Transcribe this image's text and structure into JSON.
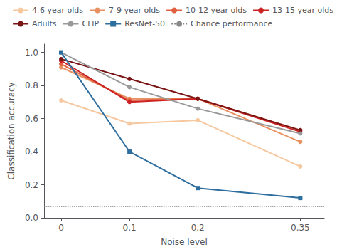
{
  "chart_data": {
    "type": "line",
    "xlabel": "Noise level",
    "ylabel": "Classification accuracy",
    "x": [
      0,
      0.1,
      0.2,
      0.35
    ],
    "series": [
      {
        "name": "4-6 year-olds",
        "color": "#f5c8a0",
        "marker": "circle",
        "line_style": "solid",
        "values": [
          0.71,
          0.57,
          0.59,
          0.31
        ]
      },
      {
        "name": "7-9 year-olds",
        "color": "#e89060",
        "marker": "circle",
        "line_style": "solid",
        "values": [
          0.91,
          0.72,
          0.72,
          0.46
        ]
      },
      {
        "name": "10-12 year-olds",
        "color": "#e06040",
        "marker": "circle",
        "line_style": "solid",
        "values": [
          0.93,
          0.71,
          0.72,
          0.53
        ]
      },
      {
        "name": "13-15 year-olds",
        "color": "#cc2222",
        "marker": "circle",
        "line_style": "solid",
        "values": [
          0.95,
          0.7,
          0.72,
          0.52
        ]
      },
      {
        "name": "Adults",
        "color": "#7a1515",
        "marker": "circle",
        "line_style": "solid",
        "values": [
          0.96,
          0.84,
          0.72,
          0.53
        ]
      },
      {
        "name": "CLIP",
        "color": "#999999",
        "marker": "circle",
        "line_style": "solid",
        "values": [
          1.0,
          0.79,
          0.66,
          0.51
        ]
      },
      {
        "name": "ResNet-50",
        "color": "#2e6e9e",
        "marker": "square",
        "line_style": "solid",
        "values": [
          1.0,
          0.4,
          0.18,
          0.12
        ]
      },
      {
        "name": "Chance performance",
        "type": "hline",
        "color": "#888888",
        "line_style": "dotted",
        "value": 0.067
      }
    ],
    "xlim": [
      -0.025,
      0.385
    ],
    "xticks": [
      0,
      0.1,
      0.2,
      0.35
    ],
    "ylim": [
      0.0,
      1.05
    ],
    "yticks": [
      {
        "value": 0.0,
        "label": "0.0"
      },
      {
        "value": 0.2,
        "label": "0.2"
      },
      {
        "value": 0.4,
        "label": "0.4"
      },
      {
        "value": 0.6,
        "label": "0.6"
      },
      {
        "value": 0.8,
        "label": "0.8"
      },
      {
        "value": 1.0,
        "label": "1.0"
      }
    ],
    "grid": false,
    "legend": "upper right"
  }
}
